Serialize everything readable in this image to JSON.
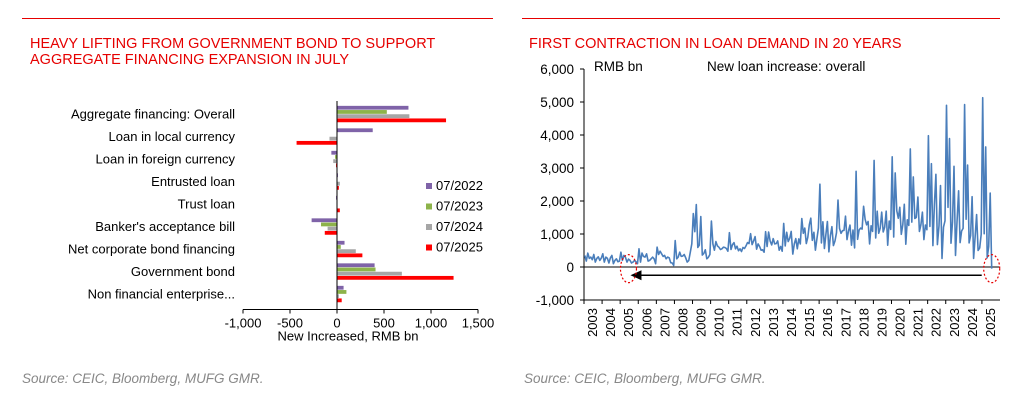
{
  "left": {
    "title": "HEAVY LIFTING FROM GOVERNMENT BOND TO SUPPORT AGGREGATE FINANCING EXPANSION IN JULY",
    "source": "Source: CEIC, Bloomberg, MUFG GMR."
  },
  "right": {
    "title": "FIRST CONTRACTION IN LOAN DEMAND IN 20 YEARS",
    "source": "Source: CEIC, Bloomberg, MUFG GMR."
  },
  "colors": {
    "accent": "#e60000",
    "purple": "#7f63a8",
    "green": "#8db34a",
    "grey": "#a6a6a6",
    "red": "#ff0000",
    "line": "#4a7ebb"
  },
  "chart_data": [
    {
      "type": "bar",
      "orientation": "horizontal",
      "categories": [
        "Aggregate financing: Overall",
        "Loan in local currency",
        "Loan in foreign currency",
        "Entrusted loan",
        "Trust loan",
        "Banker's acceptance bill",
        "Net corporate bond financing",
        "Government bond",
        "Non financial enterprise..."
      ],
      "series": [
        {
          "name": "07/2022",
          "color": "#7f63a8",
          "values": [
            760,
            380,
            -60,
            10,
            -10,
            -270,
            80,
            400,
            70
          ]
        },
        {
          "name": "07/2023",
          "color": "#8db34a",
          "values": [
            530,
            0,
            -20,
            0,
            0,
            -170,
            40,
            410,
            100
          ]
        },
        {
          "name": "07/2024",
          "color": "#a6a6a6",
          "values": [
            770,
            -80,
            -40,
            30,
            0,
            -100,
            200,
            690,
            20
          ]
        },
        {
          "name": "07/2025",
          "color": "#ff0000",
          "values": [
            1160,
            -430,
            -10,
            20,
            30,
            -130,
            270,
            1240,
            50
          ]
        }
      ],
      "xlabel": "New Increased, RMB bn",
      "xlim": [
        -1000,
        1500
      ],
      "xticks": [
        "-1,000",
        "-500",
        "0",
        "500",
        "1,000",
        "1,500"
      ],
      "xtick_values": [
        -1000,
        -500,
        0,
        500,
        1000,
        1500
      ],
      "legend": "right"
    },
    {
      "type": "line",
      "unit_label": "RMB bn",
      "series_label": "New loan increase: overall",
      "ylim": [
        -1000,
        6000
      ],
      "yticks": [
        "6,000",
        "5,000",
        "4,000",
        "3,000",
        "2,000",
        "1,000",
        "0",
        "-1,000"
      ],
      "ytick_values": [
        6000,
        5000,
        4000,
        3000,
        2000,
        1000,
        0,
        -1000
      ],
      "xticks": [
        "2003",
        "2004",
        "2005",
        "2006",
        "2007",
        "2008",
        "2009",
        "2010",
        "2011",
        "2012",
        "2013",
        "2014",
        "2015",
        "2016",
        "2017",
        "2018",
        "2019",
        "2020",
        "2021",
        "2022",
        "2023",
        "2024",
        "2025"
      ],
      "x_start_year": 2003,
      "annual": [
        [
          350,
          180,
          420,
          260,
          300,
          220,
          380,
          150,
          260,
          310,
          200,
          270
        ],
        [
          400,
          150,
          300,
          260,
          120,
          280,
          350,
          100,
          200,
          250,
          160,
          180
        ],
        [
          450,
          200,
          350,
          300,
          150,
          240,
          200,
          120,
          150,
          200,
          160,
          100
        ],
        [
          550,
          150,
          420,
          320,
          300,
          400,
          180,
          200,
          250,
          300,
          250,
          100
        ],
        [
          600,
          380,
          480,
          400,
          320,
          350,
          250,
          300,
          280,
          130,
          120,
          50
        ],
        [
          800,
          250,
          300,
          450,
          320,
          330,
          380,
          280,
          150,
          200,
          450,
          700
        ],
        [
          1620,
          1070,
          1890,
          590,
          660,
          1530,
          360,
          410,
          520,
          250,
          290,
          380
        ],
        [
          1390,
          700,
          510,
          770,
          640,
          600,
          530,
          550,
          600,
          590,
          560,
          480
        ],
        [
          1040,
          530,
          680,
          740,
          550,
          630,
          490,
          550,
          470,
          590,
          560,
          640
        ],
        [
          740,
          710,
          1010,
          680,
          790,
          920,
          540,
          700,
          620,
          510,
          520,
          450
        ],
        [
          1070,
          620,
          1060,
          790,
          670,
          860,
          700,
          710,
          790,
          510,
          620,
          480
        ],
        [
          1320,
          640,
          1050,
          770,
          870,
          1080,
          390,
          700,
          860,
          550,
          850,
          700
        ],
        [
          1470,
          1020,
          1180,
          710,
          900,
          1280,
          1480,
          810,
          1050,
          510,
          850,
          1180
        ],
        [
          2510,
          730,
          1370,
          560,
          990,
          1380,
          460,
          950,
          1220,
          650,
          790,
          1040
        ],
        [
          2030,
          1170,
          1020,
          1100,
          1110,
          1540,
          830,
          1090,
          1270,
          660,
          1120,
          580
        ],
        [
          2900,
          840,
          1120,
          1180,
          1150,
          1840,
          1450,
          1280,
          1380,
          700,
          1250,
          1080
        ],
        [
          3230,
          880,
          1690,
          1020,
          1180,
          1660,
          1060,
          1210,
          1690,
          660,
          1390,
          1140
        ],
        [
          3340,
          910,
          2850,
          1700,
          1480,
          1810,
          990,
          1280,
          1900,
          690,
          1430,
          1260
        ],
        [
          3580,
          1360,
          2730,
          1470,
          1500,
          2120,
          1080,
          1280,
          1660,
          830,
          1270,
          1130
        ],
        [
          3980,
          1230,
          3130,
          650,
          1890,
          2810,
          680,
          1250,
          2470,
          260,
          1210,
          1400
        ],
        [
          4900,
          1810,
          3890,
          720,
          1360,
          3050,
          350,
          1360,
          2310,
          740,
          1090,
          1170
        ],
        [
          4920,
          1450,
          3090,
          730,
          950,
          2130,
          260,
          900,
          1590,
          500,
          580,
          990
        ],
        [
          5130,
          1010,
          3640,
          280,
          620,
          2240,
          -50
        ]
      ],
      "annotation": "Arrow from Jul 2025 back to mid-2005: last negative print ~20 years earlier"
    }
  ]
}
